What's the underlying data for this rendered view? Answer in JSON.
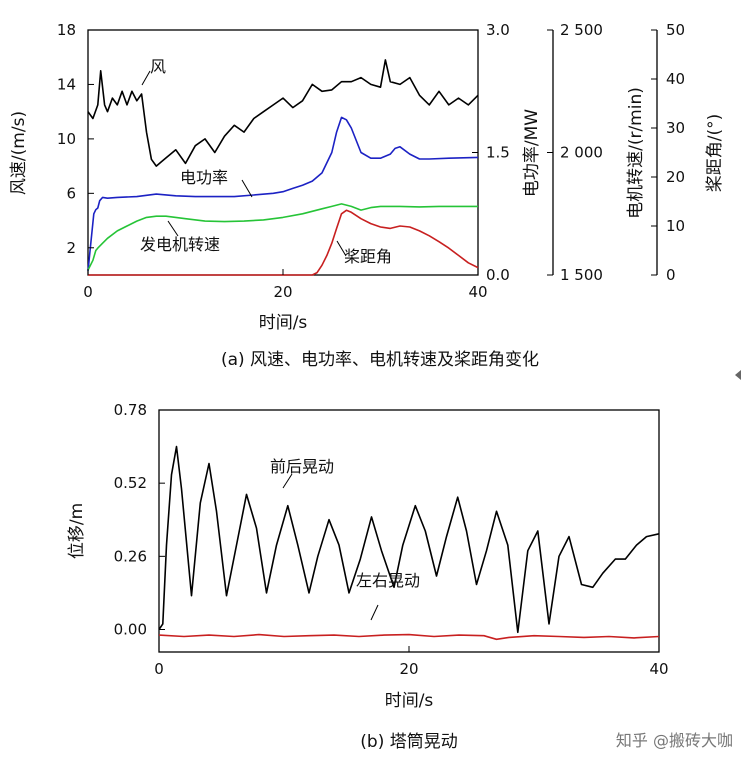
{
  "chart_data": [
    {
      "id": "a",
      "type": "line",
      "caption": "(a) 风速、电功率、电机转速及桨距角变化",
      "xlabel": "时间/s",
      "xlim": [
        0,
        40
      ],
      "xticks": [
        "0",
        "20",
        "40"
      ],
      "axes": [
        {
          "id": "wind",
          "label": "风速/(m/s)",
          "lim": [
            0,
            18
          ],
          "ticks": [
            {
              "v": 2,
              "t": "2"
            },
            {
              "v": 6,
              "t": "6"
            },
            {
              "v": 10,
              "t": "10"
            },
            {
              "v": 14,
              "t": "14"
            },
            {
              "v": 18,
              "t": "18"
            }
          ]
        },
        {
          "id": "power",
          "label": "电功率/MW",
          "lim": [
            0,
            3
          ],
          "ticks": [
            {
              "v": 0,
              "t": "0.0"
            },
            {
              "v": 1.5,
              "t": "1.5"
            },
            {
              "v": 3,
              "t": "3.0"
            }
          ]
        },
        {
          "id": "speed",
          "label": "电机转速/(r/min)",
          "lim": [
            1500,
            2500
          ],
          "ticks": [
            {
              "v": 1500,
              "t": "1 500"
            },
            {
              "v": 2000,
              "t": "2 000"
            },
            {
              "v": 2500,
              "t": "2 500"
            }
          ]
        },
        {
          "id": "pitch",
          "label": "桨距角/(°)",
          "lim": [
            0,
            50
          ],
          "ticks": [
            {
              "v": 0,
              "t": "0"
            },
            {
              "v": 10,
              "t": "10"
            },
            {
              "v": 20,
              "t": "20"
            },
            {
              "v": 30,
              "t": "30"
            },
            {
              "v": 40,
              "t": "40"
            },
            {
              "v": 50,
              "t": "50"
            }
          ]
        }
      ],
      "series": [
        {
          "name": "风",
          "axis": "wind",
          "color": "#000000",
          "x": [
            0,
            0.5,
            1,
            1.3,
            1.7,
            2,
            2.5,
            3,
            3.5,
            4,
            4.5,
            5,
            5.5,
            6,
            6.5,
            7,
            7.5,
            8,
            9,
            10,
            11,
            12,
            13,
            14,
            15,
            16,
            17,
            18,
            19,
            20,
            21,
            22,
            23,
            24,
            25,
            26,
            27,
            28,
            29,
            30,
            30.5,
            31,
            32,
            33,
            34,
            35,
            36,
            37,
            38,
            39,
            40
          ],
          "y": [
            12,
            11.5,
            12.5,
            15,
            12.5,
            12,
            13,
            12.5,
            13.5,
            12.5,
            13.5,
            12.8,
            13.3,
            10.5,
            8.5,
            8.0,
            8.3,
            8.6,
            9.2,
            8.2,
            9.5,
            10,
            9,
            10.2,
            11,
            10.5,
            11.5,
            12,
            12.5,
            13,
            12.3,
            12.8,
            14,
            13.5,
            13.6,
            14.2,
            14.2,
            14.5,
            14,
            13.8,
            15.8,
            14.2,
            14,
            14.5,
            13.2,
            12.5,
            13.5,
            12.5,
            13,
            12.5,
            13.2
          ]
        },
        {
          "name": "电功率",
          "axis": "power",
          "color": "#1c22c4",
          "x": [
            0,
            0.3,
            0.6,
            0.8,
            1.0,
            1.2,
            1.5,
            2,
            3,
            5,
            7,
            9,
            11,
            13,
            15,
            17,
            19,
            20,
            21,
            22,
            23,
            24,
            25,
            25.5,
            26,
            26.5,
            27,
            28,
            29,
            30,
            31,
            31.5,
            32,
            33,
            34,
            35,
            37,
            40
          ],
          "y": [
            0.05,
            0.4,
            0.75,
            0.8,
            0.82,
            0.91,
            0.95,
            0.94,
            0.95,
            0.96,
            0.99,
            0.97,
            0.96,
            0.96,
            0.96,
            0.98,
            1.0,
            1.02,
            1.06,
            1.1,
            1.15,
            1.25,
            1.5,
            1.75,
            1.93,
            1.9,
            1.8,
            1.5,
            1.43,
            1.43,
            1.48,
            1.55,
            1.57,
            1.48,
            1.42,
            1.42,
            1.43,
            1.44
          ]
        },
        {
          "name": "发电机转速",
          "axis": "speed",
          "color": "#26c437",
          "x": [
            0,
            0.5,
            0.8,
            1,
            1.5,
            2,
            3,
            4,
            5,
            6,
            7,
            8,
            9,
            10,
            12,
            14,
            16,
            18,
            20,
            22,
            24,
            25,
            26,
            27,
            28,
            29,
            30,
            32,
            34,
            36,
            38,
            40
          ],
          "y": [
            1520,
            1560,
            1600,
            1610,
            1630,
            1650,
            1680,
            1700,
            1720,
            1735,
            1740,
            1740,
            1735,
            1730,
            1720,
            1718,
            1720,
            1725,
            1735,
            1750,
            1770,
            1780,
            1790,
            1780,
            1765,
            1775,
            1780,
            1780,
            1778,
            1780,
            1780,
            1780
          ]
        },
        {
          "name": "桨距角",
          "axis": "pitch",
          "color": "#c82020",
          "x": [
            0,
            5,
            10,
            15,
            20,
            22,
            23,
            23.5,
            24,
            24.5,
            25,
            25.5,
            26,
            26.5,
            27,
            28,
            29,
            30,
            31,
            32,
            33,
            34,
            35,
            36,
            37,
            38,
            39,
            40
          ],
          "y": [
            0,
            0,
            0,
            0,
            0,
            0,
            0,
            0.5,
            2,
            4,
            6.5,
            9.5,
            12.5,
            13.2,
            12.8,
            11.5,
            10.5,
            9.8,
            9.5,
            10,
            9.8,
            9,
            8,
            6.8,
            5.5,
            4,
            2.5,
            1.5
          ]
        }
      ],
      "annotations": [
        {
          "text": "风",
          "series": "风"
        },
        {
          "text": "电功率",
          "series": "电功率"
        },
        {
          "text": "发电机转速",
          "series": "发电机转速"
        },
        {
          "text": "桨距角",
          "series": "桨距角"
        }
      ]
    },
    {
      "id": "b",
      "type": "line",
      "caption": "(b) 塔筒晃动",
      "xlabel": "时间/s",
      "ylabel": "位移/m",
      "xlim": [
        0,
        40
      ],
      "ylim": [
        -0.08,
        0.78
      ],
      "xticks": [
        "0",
        "20",
        "40"
      ],
      "yticks": [
        {
          "v": 0,
          "t": "0.00"
        },
        {
          "v": 0.26,
          "t": "0.26"
        },
        {
          "v": 0.52,
          "t": "0.52"
        },
        {
          "v": 0.78,
          "t": "0.78"
        }
      ],
      "series": [
        {
          "name": "前后晃动",
          "color": "#000000",
          "x": [
            0,
            0.3,
            0.6,
            1.0,
            1.4,
            1.8,
            2.6,
            3.3,
            4.0,
            4.6,
            5.4,
            6.2,
            7.0,
            7.8,
            8.6,
            9.4,
            10.3,
            11.1,
            12.0,
            12.7,
            13.6,
            14.4,
            15.2,
            16.1,
            17.0,
            17.8,
            18.8,
            19.5,
            20.5,
            21.3,
            22.2,
            23.0,
            23.9,
            24.6,
            25.4,
            26.2,
            27.0,
            27.9,
            28.7,
            29.5,
            30.3,
            31.2,
            32.0,
            32.8,
            33.8,
            34.7,
            35.5,
            36.5,
            37.3,
            38.2,
            39.0,
            40
          ],
          "y": [
            0.0,
            0.02,
            0.3,
            0.55,
            0.65,
            0.5,
            0.12,
            0.45,
            0.59,
            0.42,
            0.12,
            0.3,
            0.48,
            0.36,
            0.13,
            0.3,
            0.44,
            0.3,
            0.13,
            0.26,
            0.39,
            0.3,
            0.13,
            0.25,
            0.4,
            0.28,
            0.15,
            0.3,
            0.44,
            0.35,
            0.19,
            0.33,
            0.47,
            0.35,
            0.16,
            0.28,
            0.42,
            0.3,
            -0.01,
            0.28,
            0.35,
            0.02,
            0.26,
            0.33,
            0.16,
            0.15,
            0.2,
            0.25,
            0.25,
            0.3,
            0.33,
            0.34
          ]
        },
        {
          "name": "左右晃动",
          "color": "#c82020",
          "x": [
            0,
            2,
            4,
            6,
            8,
            10,
            12,
            14,
            16,
            18,
            20,
            22,
            24,
            26,
            27,
            28,
            30,
            32,
            34,
            36,
            38,
            40
          ],
          "y": [
            -0.02,
            -0.025,
            -0.02,
            -0.025,
            -0.018,
            -0.025,
            -0.022,
            -0.02,
            -0.025,
            -0.02,
            -0.018,
            -0.025,
            -0.02,
            -0.022,
            -0.035,
            -0.028,
            -0.022,
            -0.025,
            -0.028,
            -0.025,
            -0.03,
            -0.025
          ]
        }
      ],
      "annotations": [
        {
          "text": "前后晃动",
          "series": "前后晃动"
        },
        {
          "text": "左右晃动",
          "series": "左右晃动"
        }
      ]
    }
  ],
  "watermark": "知乎 @搬砖大咖"
}
